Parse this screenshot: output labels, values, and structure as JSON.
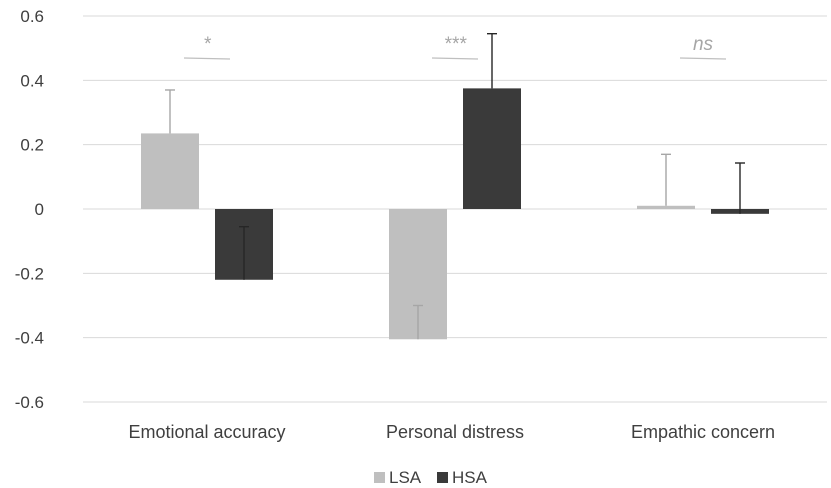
{
  "chart_data": {
    "type": "bar",
    "categories": [
      "Emotional accuracy",
      "Personal distress",
      "Empathic concern"
    ],
    "series": [
      {
        "name": "LSA",
        "color": "#bfbfbf",
        "values": [
          0.235,
          -0.405,
          0.01
        ],
        "error": [
          0.135,
          0.105,
          0.16
        ]
      },
      {
        "name": "HSA",
        "color": "#3a3a3a",
        "values": [
          -0.22,
          0.375,
          -0.015
        ],
        "error": [
          0.165,
          0.17,
          0.158
        ]
      }
    ],
    "significance": [
      "*",
      "***",
      "ns"
    ],
    "ylim": [
      -0.6,
      0.6
    ],
    "yticks": [
      "-0.6",
      "-0.4",
      "-0.2",
      "0",
      "0.2",
      "0.4",
      "0.6"
    ],
    "ytick_values": [
      -0.6,
      -0.4,
      -0.2,
      0,
      0.2,
      0.4,
      0.6
    ],
    "grid": true,
    "legend_position": "bottom",
    "title": "",
    "xlabel": "",
    "ylabel": ""
  }
}
